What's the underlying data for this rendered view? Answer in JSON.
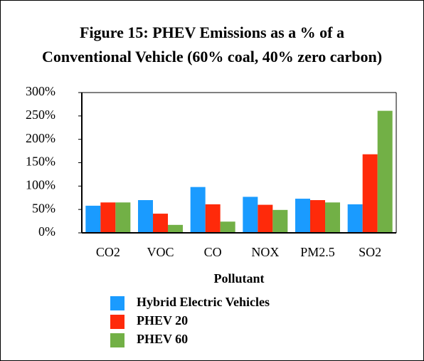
{
  "chart_data": {
    "type": "bar",
    "title": "Figure 15: PHEV Emissions as a % of a",
    "subtitle": "Conventional Vehicle (60% coal, 40% zero carbon)",
    "x_label": "Pollutant",
    "categories": [
      "CO2",
      "VOC",
      "CO",
      "NOX",
      "PM2.5",
      "SO2"
    ],
    "series": [
      {
        "name": "Hybrid Electric Vehicles",
        "color": "#1a9bff",
        "values": [
          58,
          70,
          98,
          77,
          73,
          61
        ]
      },
      {
        "name": "PHEV 20",
        "color": "#ff2a0a",
        "values": [
          65,
          41,
          61,
          60,
          70,
          168
        ]
      },
      {
        "name": "PHEV 60",
        "color": "#72b046",
        "values": [
          65,
          17,
          24,
          49,
          65,
          261
        ]
      }
    ],
    "ylim": [
      0,
      300
    ],
    "yticks": [
      {
        "value": 0,
        "label": "0%"
      },
      {
        "value": 50,
        "label": "50%"
      },
      {
        "value": 100,
        "label": "100%"
      },
      {
        "value": 150,
        "label": "150%"
      },
      {
        "value": 200,
        "label": "200%"
      },
      {
        "value": 250,
        "label": "250%"
      },
      {
        "value": 300,
        "label": "300%"
      }
    ],
    "grid": false,
    "legend": "bottom"
  }
}
